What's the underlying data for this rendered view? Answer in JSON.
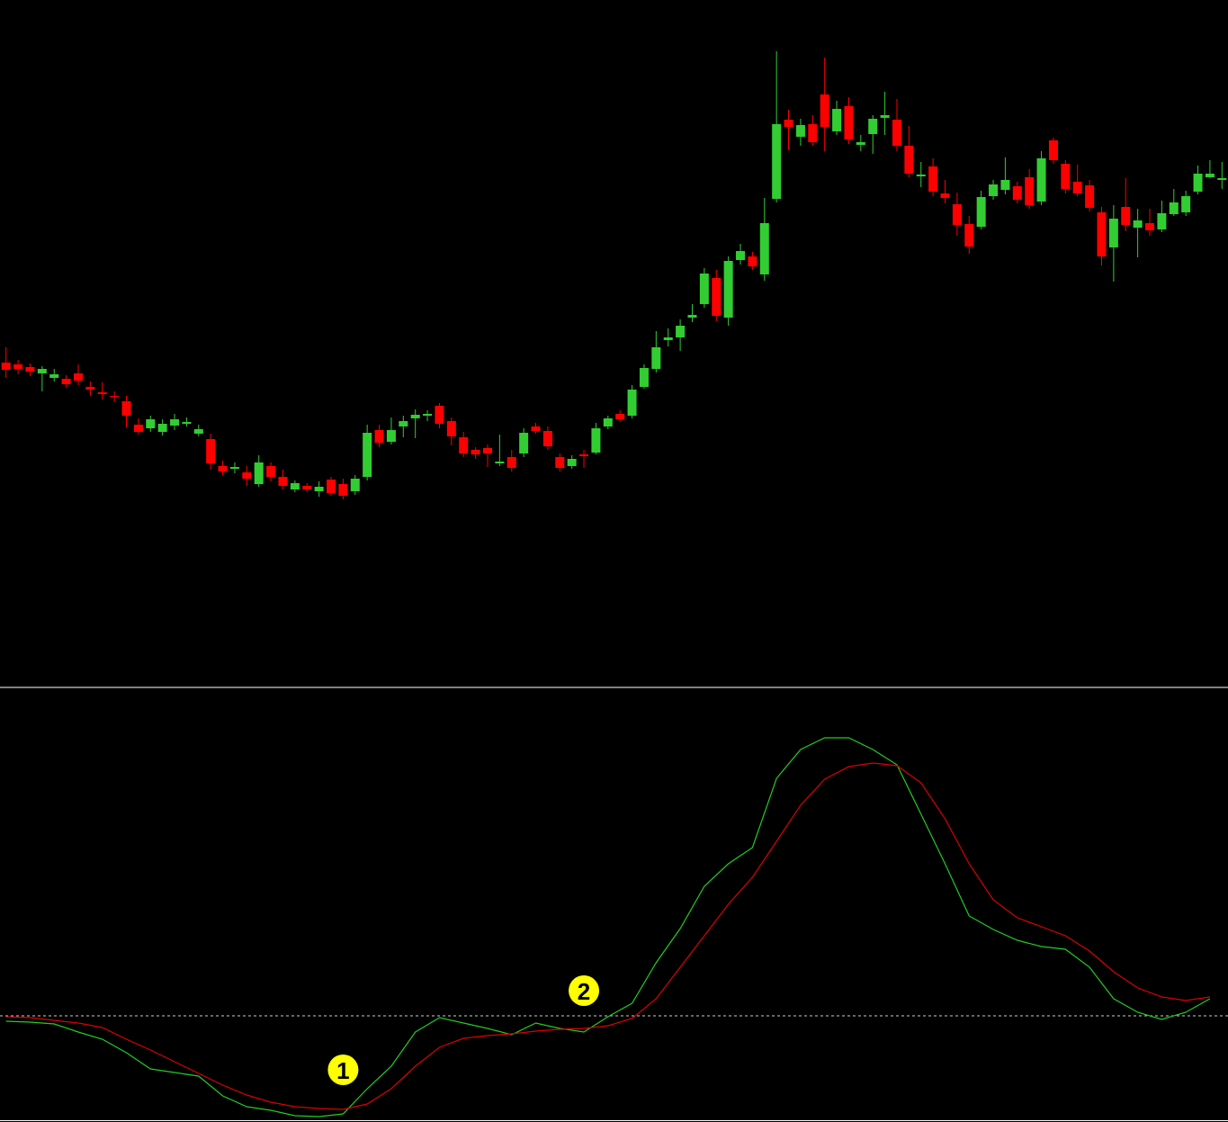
{
  "chart_data": [
    {
      "type": "candlestick",
      "open": [
        357,
        355,
        352,
        345,
        340,
        339,
        345,
        330,
        324,
        320,
        314,
        288,
        284,
        280,
        287,
        289,
        278,
        272,
        242,
        239,
        235,
        222,
        242,
        230,
        216,
        220,
        214,
        227,
        222,
        214,
        230,
        282,
        269,
        286,
        295,
        298,
        309,
        292,
        274,
        260,
        262,
        245,
        252,
        256,
        286,
        281,
        252,
        242,
        255,
        257,
        286,
        300,
        298,
        330,
        350,
        382,
        385,
        407,
        422,
        451,
        407,
        471,
        475,
        455,
        539,
        627,
        608,
        622,
        655,
        614,
        642,
        599,
        611,
        629,
        627,
        598,
        564,
        575,
        545,
        533,
        511,
        508,
        542,
        549,
        553,
        563,
        536,
        604,
        578,
        558,
        554,
        524,
        485,
        530,
        507,
        512,
        505,
        522,
        524,
        547,
        563,
        560
      ],
      "high": [
        374,
        360,
        356,
        353,
        350,
        343,
        355,
        336,
        335,
        325,
        320,
        295,
        298,
        294,
        300,
        296,
        288,
        278,
        248,
        246,
        242,
        254,
        246,
        238,
        226,
        223,
        225,
        230,
        228,
        232,
        288,
        288,
        296,
        298,
        305,
        304,
        312,
        296,
        280,
        263,
        266,
        277,
        260,
        284,
        290,
        286,
        256,
        254,
        260,
        290,
        298,
        304,
        332,
        355,
        392,
        395,
        405,
        422,
        462,
        460,
        475,
        489,
        480,
        540,
        703,
        638,
        628,
        632,
        696,
        648,
        652,
        610,
        632,
        658,
        650,
        620,
        580,
        584,
        560,
        546,
        520,
        548,
        560,
        585,
        558,
        572,
        592,
        607,
        582,
        577,
        560,
        530,
        532,
        562,
        528,
        528,
        537,
        550,
        548,
        576,
        582,
        580
      ],
      "low": [
        340,
        344,
        342,
        325,
        336,
        329,
        332,
        320,
        316,
        313,
        285,
        277,
        280,
        276,
        282,
        286,
        275,
        238,
        232,
        234,
        220,
        219,
        225,
        216,
        213,
        213,
        208,
        209,
        205,
        210,
        226,
        263,
        266,
        274,
        273,
        292,
        284,
        265,
        252,
        250,
        241,
        242,
        236,
        252,
        278,
        260,
        236,
        239,
        240,
        255,
        283,
        291,
        295,
        328,
        346,
        375,
        370,
        402,
        418,
        403,
        398,
        466,
        460,
        448,
        535,
        593,
        598,
        598,
        592,
        610,
        600,
        592,
        589,
        610,
        592,
        563,
        552,
        542,
        534,
        498,
        478,
        505,
        538,
        544,
        534,
        528,
        532,
        578,
        545,
        542,
        525,
        465,
        447,
        503,
        474,
        498,
        502,
        520,
        520,
        544,
        562,
        550
      ],
      "close": [
        349,
        350,
        347,
        350,
        344,
        333,
        337,
        327,
        322,
        319,
        298,
        280,
        294,
        289,
        294,
        291,
        283,
        245,
        236,
        241,
        228,
        246,
        230,
        220,
        223,
        216,
        219,
        212,
        209,
        228,
        279,
        268,
        282,
        292,
        299,
        300,
        289,
        275,
        256,
        255,
        256,
        247,
        240,
        279,
        281,
        264,
        240,
        250,
        253,
        284,
        295,
        294,
        327,
        351,
        374,
        385,
        398,
        410,
        456,
        409,
        470,
        481,
        464,
        512,
        622,
        619,
        621,
        602,
        619,
        639,
        605,
        602,
        628,
        632,
        598,
        567,
        566,
        547,
        540,
        510,
        486,
        541,
        555,
        560,
        538,
        532,
        584,
        582,
        550,
        545,
        529,
        475,
        517,
        510,
        515,
        504,
        523,
        535,
        542,
        567,
        567,
        562
      ],
      "up_color": "#32cd32",
      "down_color": "#ff0000",
      "xlim": [
        -0.5,
        101.5
      ],
      "ylim": [
        0,
        760
      ]
    },
    {
      "type": "line",
      "x": [
        0,
        2,
        4,
        6,
        8,
        10,
        12,
        14,
        16,
        18,
        20,
        22,
        24,
        26,
        28,
        30,
        32,
        34,
        36,
        38,
        40,
        42,
        44,
        46,
        48,
        50,
        52,
        54,
        56,
        58,
        60,
        62,
        64,
        66,
        68,
        70,
        72,
        74,
        76,
        78,
        80,
        82,
        84,
        86,
        88,
        90,
        92,
        94,
        96,
        98,
        100
      ],
      "series": [
        {
          "color": "#22cc22",
          "values": [
            -6,
            -7,
            -9,
            -18,
            -26,
            -41,
            -59,
            -63,
            -67,
            -89,
            -101,
            -105,
            -111,
            -112,
            -109,
            -81,
            -56,
            -18,
            -2,
            -8,
            -14,
            -21,
            -8,
            -14,
            -18,
            -1,
            14,
            59,
            97,
            144,
            169,
            187,
            264,
            296,
            309,
            309,
            296,
            279,
            224,
            169,
            111,
            96,
            84,
            77,
            74,
            54,
            19,
            4,
            -4,
            4,
            19
          ]
        },
        {
          "color": "#dd0000",
          "values": [
            -1,
            -2,
            -5,
            -8,
            -13,
            -26,
            -38,
            -51,
            -64,
            -77,
            -88,
            -96,
            -101,
            -103,
            -104,
            -98,
            -81,
            -56,
            -35,
            -25,
            -22,
            -20,
            -17,
            -15,
            -14,
            -11,
            -3,
            19,
            54,
            89,
            124,
            154,
            194,
            234,
            263,
            277,
            281,
            278,
            259,
            219,
            169,
            129,
            109,
            99,
            89,
            72,
            49,
            31,
            21,
            17,
            21
          ]
        }
      ],
      "xlim": [
        -0.5,
        101.5
      ],
      "ylim": [
        -116,
        364
      ],
      "reference_line": 0,
      "annotations": [
        {
          "text": "1",
          "x": 28,
          "y": -60
        },
        {
          "text": "2",
          "x": 48,
          "y": 28
        }
      ]
    }
  ]
}
